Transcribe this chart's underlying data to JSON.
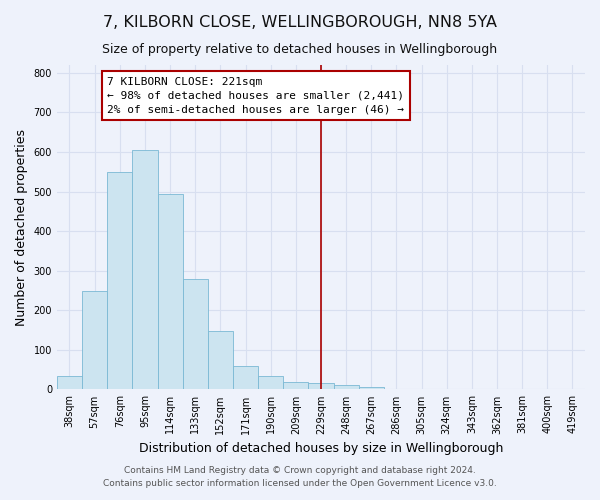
{
  "title": "7, KILBORN CLOSE, WELLINGBOROUGH, NN8 5YA",
  "subtitle": "Size of property relative to detached houses in Wellingborough",
  "xlabel": "Distribution of detached houses by size in Wellingborough",
  "ylabel": "Number of detached properties",
  "bar_labels": [
    "38sqm",
    "57sqm",
    "76sqm",
    "95sqm",
    "114sqm",
    "133sqm",
    "152sqm",
    "171sqm",
    "190sqm",
    "209sqm",
    "229sqm",
    "248sqm",
    "267sqm",
    "286sqm",
    "305sqm",
    "324sqm",
    "343sqm",
    "362sqm",
    "381sqm",
    "400sqm",
    "419sqm"
  ],
  "bar_values": [
    35,
    250,
    550,
    605,
    495,
    278,
    148,
    60,
    35,
    20,
    15,
    10,
    5,
    2,
    1,
    1,
    1,
    1,
    0,
    0,
    2
  ],
  "bar_color": "#cce4f0",
  "bar_edge_color": "#7ab8d4",
  "vline_x_index": 10,
  "vline_color": "#aa0000",
  "annotation_title": "7 KILBORN CLOSE: 221sqm",
  "annotation_line1": "← 98% of detached houses are smaller (2,441)",
  "annotation_line2": "2% of semi-detached houses are larger (46) →",
  "annotation_box_color": "#ffffff",
  "annotation_box_edge": "#aa0000",
  "ylim": [
    0,
    820
  ],
  "yticks": [
    0,
    100,
    200,
    300,
    400,
    500,
    600,
    700,
    800
  ],
  "footer1": "Contains HM Land Registry data © Crown copyright and database right 2024.",
  "footer2": "Contains public sector information licensed under the Open Government Licence v3.0.",
  "bg_color": "#eef2fb",
  "grid_color": "#d8dff0",
  "title_fontsize": 11.5,
  "subtitle_fontsize": 9,
  "axis_label_fontsize": 9,
  "tick_fontsize": 7,
  "footer_fontsize": 6.5
}
